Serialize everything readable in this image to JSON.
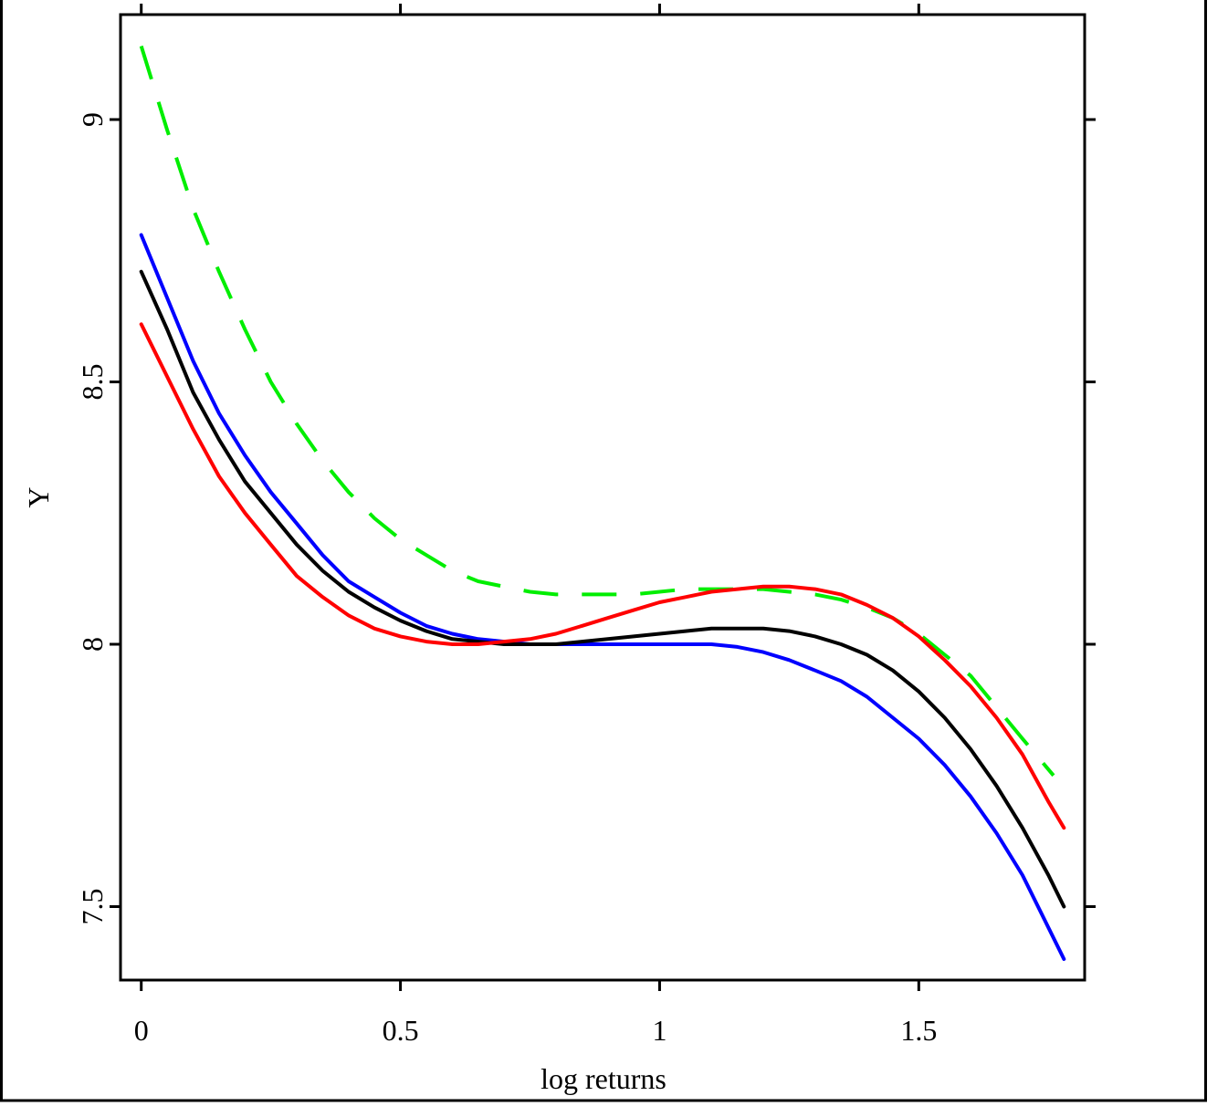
{
  "chart_data": {
    "type": "line",
    "title": "",
    "xlabel": "log returns",
    "ylabel": "Y",
    "xlim": [
      -0.04,
      1.82
    ],
    "ylim": [
      7.36,
      9.2
    ],
    "xticks": [
      0,
      0.5,
      1,
      1.5
    ],
    "xtick_labels": [
      "0",
      "0.5",
      "1",
      "1.5"
    ],
    "yticks": [
      7.5,
      8,
      8.5,
      9
    ],
    "ytick_labels": [
      "7.5",
      "8",
      "8.5",
      "9"
    ],
    "grid": false,
    "legend": "none",
    "series": [
      {
        "color": "#00ee00",
        "style": "dashed",
        "x": [
          0,
          0.05,
          0.1,
          0.15,
          0.2,
          0.25,
          0.3,
          0.35,
          0.4,
          0.45,
          0.5,
          0.55,
          0.6,
          0.65,
          0.7,
          0.75,
          0.8,
          0.85,
          0.9,
          0.95,
          1.0,
          1.05,
          1.1,
          1.15,
          1.2,
          1.25,
          1.3,
          1.35,
          1.4,
          1.45,
          1.5,
          1.55,
          1.6,
          1.65,
          1.7,
          1.76
        ],
        "y": [
          9.14,
          8.98,
          8.83,
          8.71,
          8.6,
          8.5,
          8.42,
          8.35,
          8.29,
          8.24,
          8.2,
          8.17,
          8.14,
          8.12,
          8.11,
          8.1,
          8.095,
          8.095,
          8.095,
          8.095,
          8.1,
          8.105,
          8.105,
          8.105,
          8.105,
          8.1,
          8.095,
          8.085,
          8.07,
          8.05,
          8.02,
          7.98,
          7.94,
          7.88,
          7.82,
          7.75
        ]
      },
      {
        "color": "#0000ff",
        "style": "solid",
        "x": [
          0,
          0.05,
          0.1,
          0.15,
          0.2,
          0.25,
          0.3,
          0.35,
          0.4,
          0.45,
          0.5,
          0.55,
          0.6,
          0.65,
          0.7,
          0.75,
          0.8,
          0.85,
          0.9,
          0.95,
          1.0,
          1.05,
          1.1,
          1.15,
          1.2,
          1.25,
          1.3,
          1.35,
          1.4,
          1.45,
          1.5,
          1.55,
          1.6,
          1.65,
          1.7,
          1.75,
          1.78
        ],
        "y": [
          8.78,
          8.66,
          8.54,
          8.44,
          8.36,
          8.29,
          8.23,
          8.17,
          8.12,
          8.09,
          8.06,
          8.035,
          8.02,
          8.01,
          8.005,
          8.0,
          8.0,
          8.0,
          8.0,
          8.0,
          8.0,
          8.0,
          8.0,
          7.995,
          7.985,
          7.97,
          7.95,
          7.93,
          7.9,
          7.86,
          7.82,
          7.77,
          7.71,
          7.64,
          7.56,
          7.46,
          7.4
        ]
      },
      {
        "color": "#000000",
        "style": "solid",
        "x": [
          0,
          0.05,
          0.1,
          0.15,
          0.2,
          0.25,
          0.3,
          0.35,
          0.4,
          0.45,
          0.5,
          0.55,
          0.6,
          0.65,
          0.7,
          0.75,
          0.8,
          0.85,
          0.9,
          0.95,
          1.0,
          1.05,
          1.1,
          1.15,
          1.2,
          1.25,
          1.3,
          1.35,
          1.4,
          1.45,
          1.5,
          1.55,
          1.6,
          1.65,
          1.7,
          1.75,
          1.78
        ],
        "y": [
          8.71,
          8.6,
          8.48,
          8.39,
          8.31,
          8.25,
          8.19,
          8.14,
          8.1,
          8.07,
          8.045,
          8.025,
          8.01,
          8.005,
          8.0,
          8.0,
          8.0,
          8.005,
          8.01,
          8.015,
          8.02,
          8.025,
          8.03,
          8.03,
          8.03,
          8.025,
          8.015,
          8.0,
          7.98,
          7.95,
          7.91,
          7.86,
          7.8,
          7.73,
          7.65,
          7.56,
          7.5
        ]
      },
      {
        "color": "#ff0000",
        "style": "solid",
        "x": [
          0,
          0.05,
          0.1,
          0.15,
          0.2,
          0.25,
          0.3,
          0.35,
          0.4,
          0.45,
          0.5,
          0.55,
          0.6,
          0.65,
          0.7,
          0.75,
          0.8,
          0.85,
          0.9,
          0.95,
          1.0,
          1.05,
          1.1,
          1.15,
          1.2,
          1.25,
          1.3,
          1.35,
          1.4,
          1.45,
          1.5,
          1.55,
          1.6,
          1.65,
          1.7,
          1.75,
          1.78
        ],
        "y": [
          8.61,
          8.51,
          8.41,
          8.32,
          8.25,
          8.19,
          8.13,
          8.09,
          8.055,
          8.03,
          8.015,
          8.005,
          8.0,
          8.0,
          8.005,
          8.01,
          8.02,
          8.035,
          8.05,
          8.065,
          8.08,
          8.09,
          8.1,
          8.105,
          8.11,
          8.11,
          8.105,
          8.095,
          8.075,
          8.05,
          8.015,
          7.97,
          7.92,
          7.86,
          7.79,
          7.7,
          7.65
        ]
      }
    ]
  }
}
